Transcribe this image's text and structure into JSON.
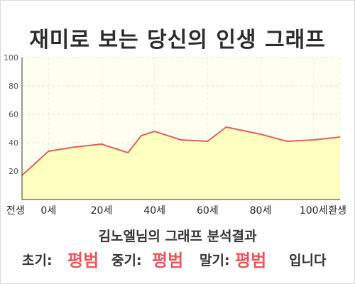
{
  "title": "재미로 보는 당신의 인생 그래프",
  "chart_data": {
    "type": "area",
    "x": [
      "전생",
      0,
      10,
      20,
      30,
      35,
      40,
      50,
      60,
      67,
      80,
      90,
      100,
      "환생"
    ],
    "x_numeric": [
      -10,
      0,
      10,
      20,
      30,
      35,
      40,
      50,
      60,
      67,
      80,
      90,
      100,
      110
    ],
    "x_ticks": [
      {
        "x": -10,
        "label": "전생"
      },
      {
        "x": 0,
        "label": "0세"
      },
      {
        "x": 20,
        "label": "20세"
      },
      {
        "x": 40,
        "label": "40세"
      },
      {
        "x": 60,
        "label": "60세"
      },
      {
        "x": 80,
        "label": "80세"
      },
      {
        "x": 100,
        "label": "100세"
      },
      {
        "x": 110,
        "label": "환생"
      }
    ],
    "y": [
      17,
      34,
      37,
      39,
      33,
      45,
      48,
      42,
      41,
      51,
      46,
      41,
      42,
      44
    ],
    "ylim": [
      0,
      100
    ],
    "y_ticks": [
      "20",
      "40",
      "60",
      "80",
      "100"
    ],
    "grid": true,
    "line_color": "#e06060",
    "fill_color": "#ffffc0",
    "plot_background": "#fffff0"
  },
  "result": {
    "title": "김노엘님의 그래프 분석결과",
    "early_label": "초기:",
    "early_value": "평범",
    "middle_label": "중기:",
    "middle_value": "평범",
    "late_label": "말기:",
    "late_value": "평범",
    "suffix": "입니다"
  }
}
